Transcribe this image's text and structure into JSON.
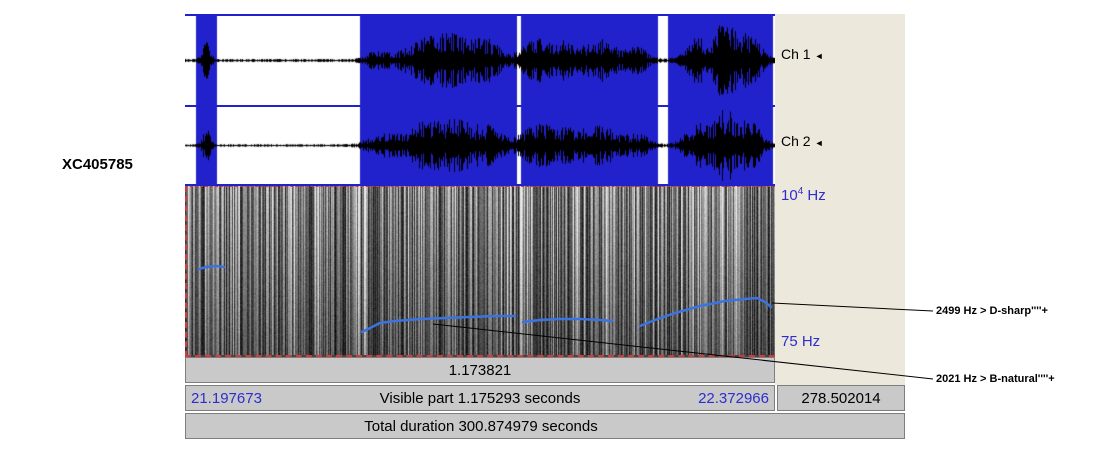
{
  "recording_label": "XC405785",
  "channels": [
    {
      "label": "Ch 1"
    },
    {
      "label": "Ch 2"
    }
  ],
  "icons": {
    "speaker_glyph": "◄"
  },
  "spectrogram_axis": {
    "freq_top_base": "10",
    "freq_top_exp": "4",
    "freq_top_unit": " Hz",
    "freq_bottom": "75 Hz"
  },
  "timebars": {
    "selection_duration": "1.173821",
    "window_start": "21.197673",
    "visible_part": "Visible part 1.175293 seconds",
    "window_end": "22.372966",
    "time_after_window": "278.502014",
    "total_duration": "Total duration 300.874979 seconds"
  },
  "annotations": [
    {
      "text": "2499 Hz > D-sharp''''+"
    },
    {
      "text": "2021 Hz > B-natural''''+"
    }
  ],
  "colors": {
    "selection_blue": "#2222cc",
    "pitch_contour_blue": "#3b74e0",
    "axis_text_blue": "#2d2dcf",
    "selection_dash_red": "#cf3b3b",
    "side_panel_beige": "#ECE9DC",
    "bar_grey": "#c9c9c9"
  }
}
